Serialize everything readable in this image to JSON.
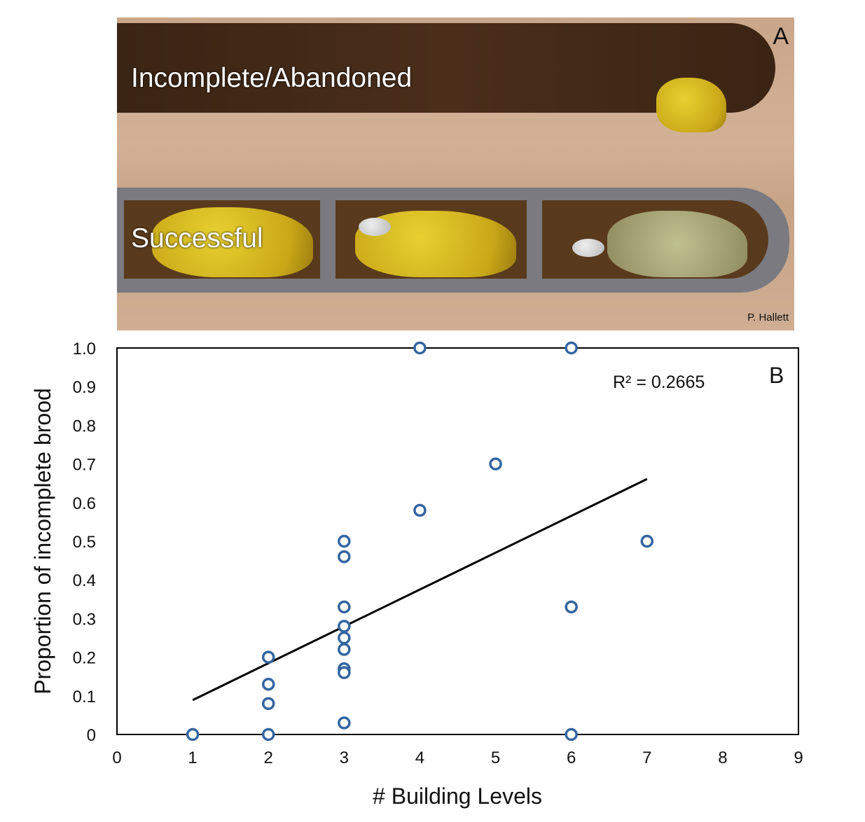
{
  "photo": {
    "panel_label": "A",
    "label_top": "Incomplete/Abandoned",
    "label_bottom": "Successful",
    "credit": "P. Hallett"
  },
  "chart_data": {
    "type": "scatter",
    "panel_label": "B",
    "xlabel": "# Building Levels",
    "ylabel": "Proportion of incomplete brood",
    "xlim": [
      0,
      9
    ],
    "ylim": [
      0,
      1.0
    ],
    "xticks": [
      "0",
      "1",
      "2",
      "3",
      "4",
      "5",
      "6",
      "7",
      "8",
      "9"
    ],
    "yticks": [
      "0",
      "0.1",
      "0.2",
      "0.3",
      "0.4",
      "0.5",
      "0.6",
      "0.7",
      "0.8",
      "0.9",
      "1.0"
    ],
    "annotation": "R² = 0.2665",
    "marker_color": "#3465a0",
    "points": [
      [
        1,
        0
      ],
      [
        2,
        0.2
      ],
      [
        2,
        0.13
      ],
      [
        2,
        0.08
      ],
      [
        2,
        0
      ],
      [
        3,
        0.5
      ],
      [
        3,
        0.46
      ],
      [
        3,
        0.33
      ],
      [
        3,
        0.28
      ],
      [
        3,
        0.25
      ],
      [
        3,
        0.22
      ],
      [
        3,
        0.17
      ],
      [
        3,
        0.16
      ],
      [
        3,
        0.03
      ],
      [
        4,
        1.0
      ],
      [
        4,
        0.58
      ],
      [
        5,
        0.7
      ],
      [
        6,
        1.0
      ],
      [
        6,
        0.33
      ],
      [
        6,
        0
      ],
      [
        7,
        0.5
      ]
    ],
    "trendline": {
      "x": [
        1,
        7
      ],
      "y": [
        0.089,
        0.661
      ]
    }
  }
}
